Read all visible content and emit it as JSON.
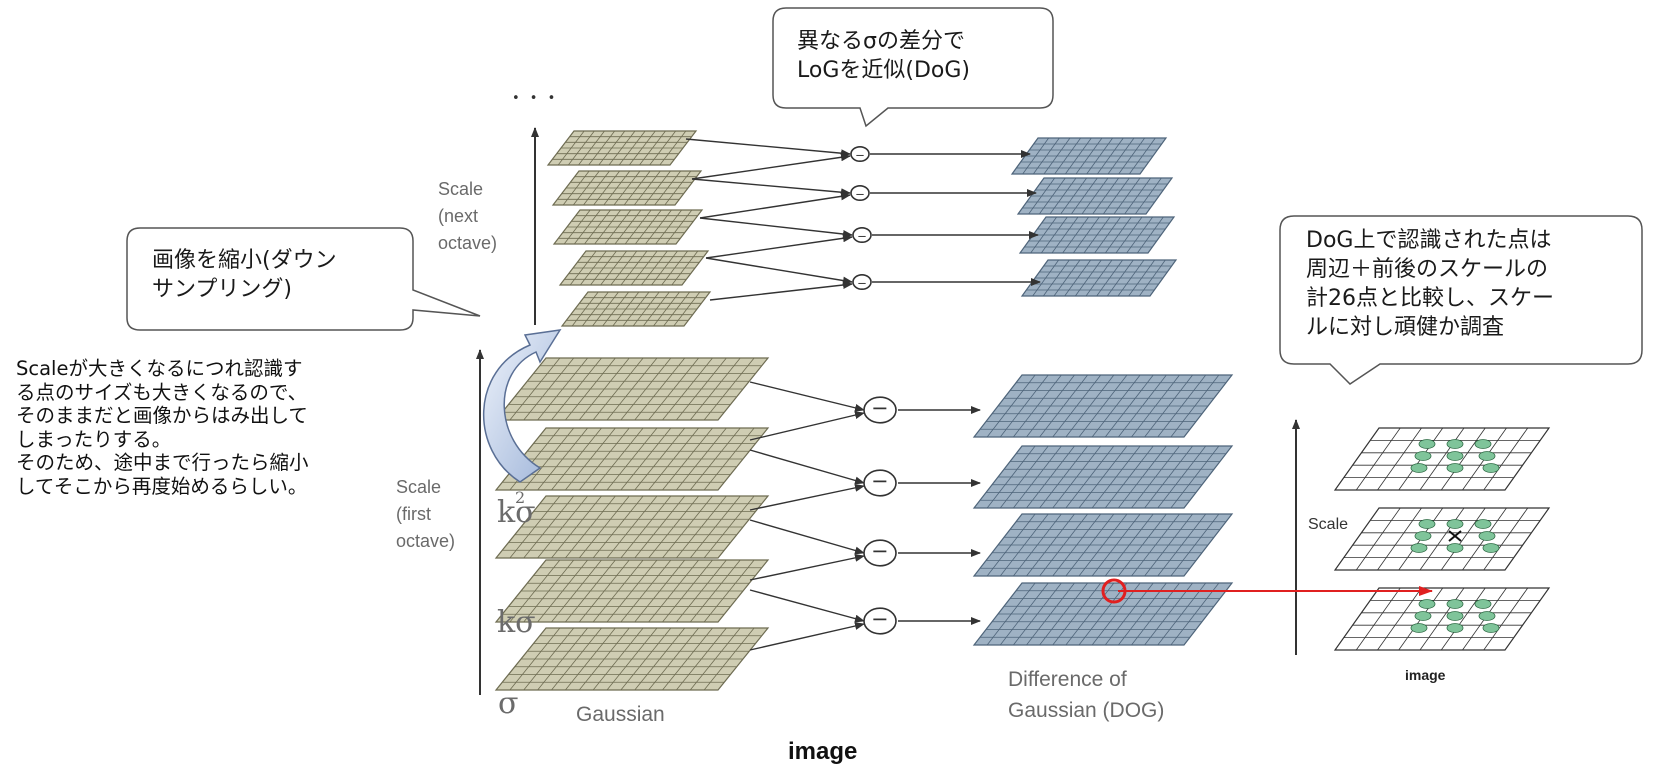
{
  "callouts": {
    "dog_title": "異なるσの差分で\nLoGを近似(DoG)",
    "downsample": "画像を縮小(ダウン\nサンプリング)",
    "keypoint": "DoG上で認識された点は\n周辺＋前後のスケールの\n計26点と比較し、スケー\nルに対し頑健か調査"
  },
  "side_note": "Scaleが大きくなるにつれ認識す\nる点のサイズも大きくなるので、\nそのままだと画像からはみ出して\nしまったりする。\nそのため、途中まで行ったら縮小\nしてそこから再度始めるらしい。",
  "labels": {
    "scale_next": "Scale\n(next\noctave)",
    "scale_first": "Scale\n(first\noctave)",
    "gaussian": "Gaussian",
    "dog": "Difference of\nGaussian (DOG)",
    "scale_right": "Scale",
    "image_small": "image",
    "image_main": "image",
    "ellipsis": "• • •",
    "minus": "−"
  },
  "sigma_labels": {
    "sigma": "σ",
    "k_sigma": "kσ",
    "k2_sigma": "kσ",
    "k2_exp": "2"
  },
  "colors": {
    "gaussian_fill": "#cfcdb3",
    "gaussian_line": "#6e6c52",
    "dog_fill": "#9fb2c4",
    "dog_line": "#4e647a",
    "highlight": "#e02020",
    "blob": "#7fc49a"
  }
}
